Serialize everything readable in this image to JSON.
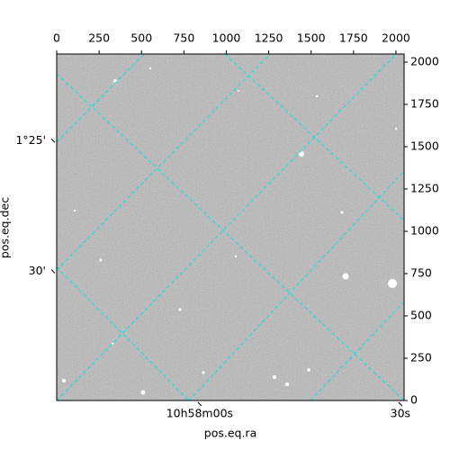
{
  "chart_data": {
    "type": "image",
    "xlabel": "pos.eq.ra",
    "ylabel": "pos.eq.dec",
    "xlim": [
      0,
      2048
    ],
    "ylim": [
      0,
      2048
    ],
    "xticks": [
      0,
      250,
      500,
      750,
      1000,
      1250,
      1500,
      1750,
      2000
    ],
    "yticks": [
      0,
      250,
      500,
      750,
      1000,
      1250,
      1500,
      1750,
      2000
    ],
    "ra_ticks": [
      {
        "value": 843,
        "label": "10h58m00s"
      },
      {
        "value": 2026,
        "label": "30s"
      }
    ],
    "dec_ticks": [
      {
        "value": 1536,
        "label": "1°25'"
      },
      {
        "value": 763,
        "label": "30'"
      }
    ],
    "grid_color": "#00e5e5"
  }
}
